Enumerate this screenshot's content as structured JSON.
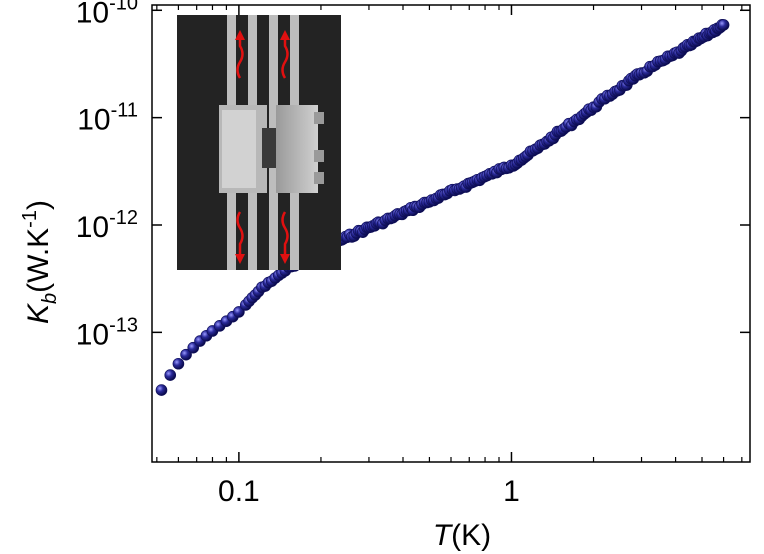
{
  "chart_data": {
    "type": "scatter",
    "xlabel": {
      "italic": "T",
      "rest": "(K)"
    },
    "ylabel": {
      "italic": "K",
      "sub": "b",
      "rest": "(W.K",
      "sup": "-1",
      "close": ")"
    },
    "x_scale": "log",
    "y_scale": "log",
    "xlim": [
      0.048,
      7.5
    ],
    "ylim": [
      6.2e-15,
      1.12e-10
    ],
    "x_ticks": [
      {
        "value": 0.1,
        "label": "0.1"
      },
      {
        "value": 1,
        "label": "1"
      }
    ],
    "y_ticks": [
      {
        "value": 1e-13,
        "base": "10",
        "exp": "-13"
      },
      {
        "value": 1e-12,
        "base": "10",
        "exp": "-12"
      },
      {
        "value": 1e-11,
        "base": "10",
        "exp": "-11"
      },
      {
        "value": 1e-10,
        "base": "10",
        "exp": "-10"
      }
    ],
    "grid": false,
    "marker_color": "#2a2a9a",
    "series": [
      {
        "name": "",
        "x": [
          0.052,
          0.056,
          0.06,
          0.064,
          0.068,
          0.072,
          0.076,
          0.08,
          0.085,
          0.09,
          0.095,
          0.1,
          0.106,
          0.112,
          0.118,
          0.125,
          0.132,
          0.14,
          0.148,
          0.156,
          0.165,
          0.175,
          0.185,
          0.196,
          0.21,
          0.22,
          0.235,
          0.25,
          0.27,
          0.29,
          0.31,
          0.33,
          0.36,
          0.39,
          0.42,
          0.45,
          0.49,
          0.53,
          0.57,
          0.62,
          0.67,
          0.72,
          0.78,
          0.85,
          0.92,
          1.0,
          1.07,
          1.15,
          1.25,
          1.35,
          1.45,
          1.55,
          1.7,
          1.85,
          2.0,
          2.2,
          2.4,
          2.6,
          2.8,
          3.0,
          3.3,
          3.6,
          3.9,
          4.2,
          4.5,
          4.8,
          5.1,
          5.4,
          5.7,
          6.0
        ],
        "y": [
          2.9e-14,
          4e-14,
          5.1e-14,
          6.2e-14,
          7.2e-14,
          8.3e-14,
          9.3e-14,
          1.03e-13,
          1.15e-13,
          1.27e-13,
          1.4e-13,
          1.55e-13,
          1.8e-13,
          2.1e-13,
          2.4e-13,
          2.7e-13,
          3e-13,
          3.4e-13,
          3.75e-13,
          4.1e-13,
          4.5e-13,
          4.9e-13,
          5.3e-13,
          5.7e-13,
          6.3e-13,
          6.7e-13,
          7.2e-13,
          7.7e-13,
          8.4e-13,
          9.1e-13,
          9.8e-13,
          1.05e-12,
          1.15e-12,
          1.26e-12,
          1.37e-12,
          1.48e-12,
          1.62e-12,
          1.77e-12,
          1.92e-12,
          2.1e-12,
          2.3e-12,
          2.5e-12,
          2.75e-12,
          3e-12,
          3.3e-12,
          3.6e-12,
          4e-12,
          4.5e-12,
          5.2e-12,
          6e-12,
          6.9e-12,
          7.8e-12,
          9.2e-12,
          1.08e-11,
          1.25e-11,
          1.5e-11,
          1.75e-11,
          2e-11,
          2.3e-11,
          2.6e-11,
          3e-11,
          3.4e-11,
          3.8e-11,
          4.2e-11,
          4.7e-11,
          5.2e-11,
          5.7e-11,
          6.2e-11,
          6.8e-11,
          7.3e-11
        ]
      }
    ],
    "inset": {
      "type": "micrograph-image"
    }
  }
}
